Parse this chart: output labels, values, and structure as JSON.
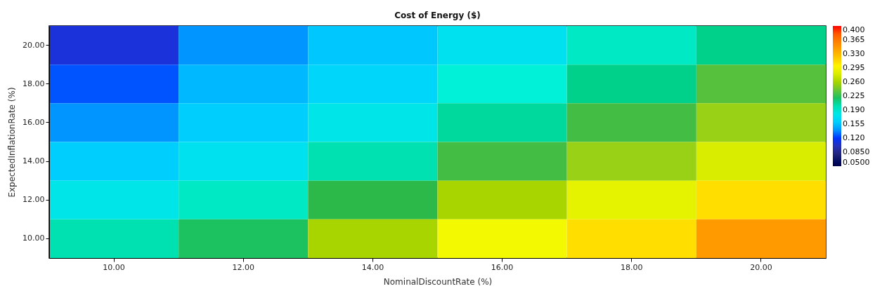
{
  "chart_data": {
    "type": "heatmap",
    "title": "Cost of Energy ($)",
    "xlabel": "NominalDiscountRate (%)",
    "ylabel": "ExpectedInflationRate (%)",
    "categories": [
      "10.00",
      "12.00",
      "14.00",
      "16.00",
      "18.00",
      "20.00"
    ],
    "y_categories": [
      "20.00",
      "18.00",
      "16.00",
      "14.00",
      "12.00",
      "10.00"
    ],
    "cells": [
      [
        0.11,
        0.14,
        0.155,
        0.175,
        0.195,
        0.21
      ],
      [
        0.125,
        0.15,
        0.165,
        0.19,
        0.21,
        0.235
      ],
      [
        0.14,
        0.16,
        0.18,
        0.205,
        0.23,
        0.255
      ],
      [
        0.16,
        0.175,
        0.2,
        0.23,
        0.255,
        0.28
      ],
      [
        0.18,
        0.195,
        0.225,
        0.26,
        0.285,
        0.31
      ],
      [
        0.2,
        0.22,
        0.26,
        0.29,
        0.31,
        0.345
      ]
    ],
    "clim": [
      0.05,
      0.4
    ],
    "cticks": [
      {
        "value": 0.05,
        "label": "0.0500"
      },
      {
        "value": 0.085,
        "label": "0.0850"
      },
      {
        "value": 0.12,
        "label": "0.120"
      },
      {
        "value": 0.155,
        "label": "0.155"
      },
      {
        "value": 0.19,
        "label": "0.190"
      },
      {
        "value": 0.225,
        "label": "0.225"
      },
      {
        "value": 0.26,
        "label": "0.260"
      },
      {
        "value": 0.295,
        "label": "0.295"
      },
      {
        "value": 0.33,
        "label": "0.330"
      },
      {
        "value": 0.365,
        "label": "0.365"
      },
      {
        "value": 0.4,
        "label": "0.400"
      }
    ]
  }
}
